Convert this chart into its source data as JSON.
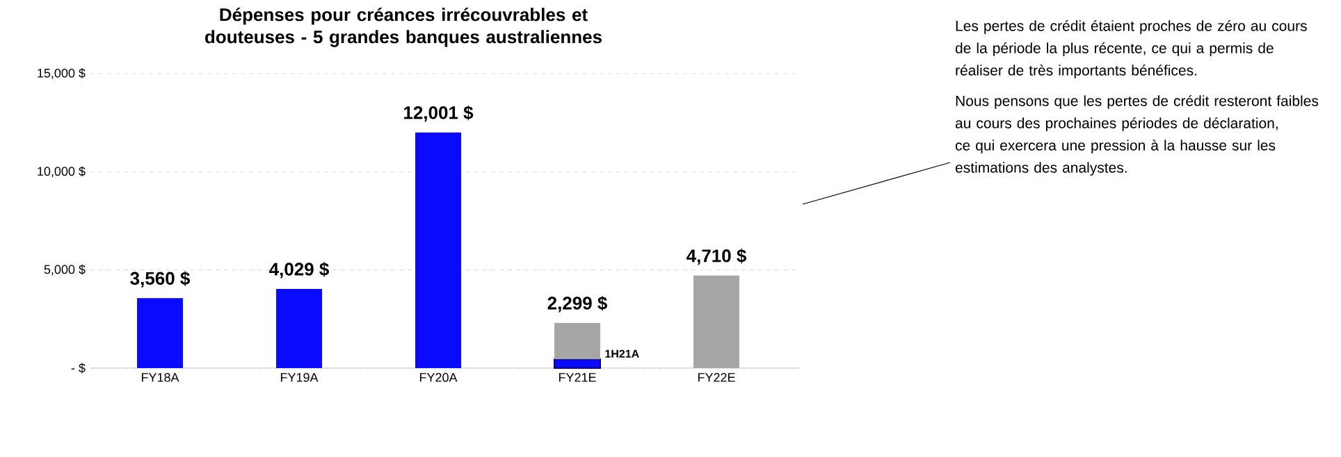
{
  "chart_data": {
    "type": "bar",
    "title": "Dépenses pour créances irrécouvrables et douteuses - 5 grandes banques australiennes",
    "categories": [
      "FY18A",
      "FY19A",
      "FY20A",
      "FY21E",
      "FY22E"
    ],
    "stacked": true,
    "series": [
      {
        "color": "#0a0aff",
        "values": [
          3560,
          4029,
          12001,
          450,
          null
        ]
      },
      {
        "color": "#a6a6a6",
        "values": [
          null,
          null,
          null,
          1849,
          4710
        ]
      }
    ],
    "totals": [
      "3,560 $",
      "4,029 $",
      "12,001 $",
      "2,299 $",
      "4,710 $"
    ],
    "ylim": [
      0,
      15000
    ],
    "yticks": [
      {
        "value": 0,
        "label": "-  $"
      },
      {
        "value": 5000,
        "label": "5,000 $"
      },
      {
        "value": 10000,
        "label": "10,000 $"
      },
      {
        "value": 15000,
        "label": "15,000 $"
      }
    ],
    "grid": "y",
    "annotations": [
      {
        "text": "1H21A",
        "x": "FY21E",
        "y": 450
      },
      "Les pertes de crédit étaient proches de zéro au cours de la période la plus récente, ce qui a permis de réaliser de très importants bénéfices.",
      "Nous pensons que les pertes de crédit resteront faibles au cours des prochaines périodes de déclaration, ce qui exercera une pression à la hausse sur les estimations des analystes."
    ]
  }
}
